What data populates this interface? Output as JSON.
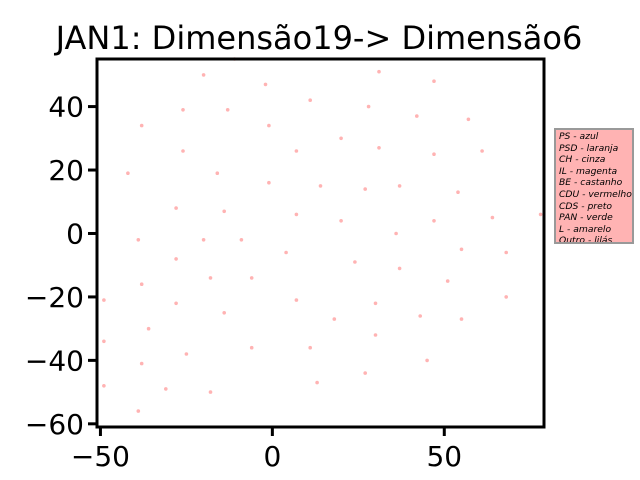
{
  "colors": {
    "point": "#ffb3b3",
    "legend_bg": "#ffb3b3",
    "legend_border": "#999999"
  },
  "chart_data": {
    "type": "scatter",
    "title": "JAN1: Dimensão19-> Dimensão6",
    "xlabel": "",
    "ylabel": "",
    "xlim": [
      -51,
      79
    ],
    "ylim": [
      -61,
      55
    ],
    "xticks": [
      -50,
      0,
      50
    ],
    "xtick_labels": [
      "−50",
      "0",
      "50"
    ],
    "yticks": [
      -60,
      -40,
      -20,
      0,
      20,
      40
    ],
    "ytick_labels": [
      "−60",
      "−40",
      "−20",
      "0",
      "20",
      "40"
    ],
    "grid": false,
    "legend_position": "outside-right",
    "legend": [
      "PS - azul",
      "PSD - laranja",
      "CH - cinza",
      "IL - magenta",
      "BE - castanho",
      "CDU - vermelho",
      "CDS - preto",
      "PAN - verde",
      "L - amarelo",
      "Outro - lilás"
    ],
    "points": [
      {
        "x": -20,
        "y": 50
      },
      {
        "x": -11,
        "y": 55
      },
      {
        "x": 31,
        "y": 51
      },
      {
        "x": -2,
        "y": 47
      },
      {
        "x": 47,
        "y": 48
      },
      {
        "x": 11,
        "y": 42
      },
      {
        "x": -26,
        "y": 39
      },
      {
        "x": -13,
        "y": 39
      },
      {
        "x": 28,
        "y": 40
      },
      {
        "x": 42,
        "y": 37
      },
      {
        "x": 57,
        "y": 36
      },
      {
        "x": -38,
        "y": 34
      },
      {
        "x": -1,
        "y": 34
      },
      {
        "x": 20,
        "y": 30
      },
      {
        "x": 31,
        "y": 27
      },
      {
        "x": -26,
        "y": 26
      },
      {
        "x": 7,
        "y": 26
      },
      {
        "x": 47,
        "y": 25
      },
      {
        "x": 61,
        "y": 26
      },
      {
        "x": -42,
        "y": 19
      },
      {
        "x": -16,
        "y": 19
      },
      {
        "x": -1,
        "y": 16
      },
      {
        "x": 14,
        "y": 15
      },
      {
        "x": 27,
        "y": 14
      },
      {
        "x": 37,
        "y": 15
      },
      {
        "x": 54,
        "y": 13
      },
      {
        "x": -28,
        "y": 8
      },
      {
        "x": -14,
        "y": 7
      },
      {
        "x": 7,
        "y": 6
      },
      {
        "x": 20,
        "y": 4
      },
      {
        "x": 47,
        "y": 4
      },
      {
        "x": 64,
        "y": 5
      },
      {
        "x": 78,
        "y": 6
      },
      {
        "x": -39,
        "y": -2
      },
      {
        "x": -20,
        "y": -2
      },
      {
        "x": -9,
        "y": -2
      },
      {
        "x": 36,
        "y": 0
      },
      {
        "x": 4,
        "y": -6
      },
      {
        "x": 55,
        "y": -5
      },
      {
        "x": 68,
        "y": -6
      },
      {
        "x": -28,
        "y": -8
      },
      {
        "x": 24,
        "y": -9
      },
      {
        "x": -18,
        "y": -14
      },
      {
        "x": -6,
        "y": -14
      },
      {
        "x": 37,
        "y": -11
      },
      {
        "x": 51,
        "y": -15
      },
      {
        "x": -38,
        "y": -16
      },
      {
        "x": -49,
        "y": -21
      },
      {
        "x": -28,
        "y": -22
      },
      {
        "x": 7,
        "y": -21
      },
      {
        "x": 30,
        "y": -22
      },
      {
        "x": 68,
        "y": -20
      },
      {
        "x": -14,
        "y": -25
      },
      {
        "x": 43,
        "y": -26
      },
      {
        "x": 55,
        "y": -27
      },
      {
        "x": 18,
        "y": -27
      },
      {
        "x": -36,
        "y": -30
      },
      {
        "x": 30,
        "y": -32
      },
      {
        "x": -49,
        "y": -34
      },
      {
        "x": -6,
        "y": -36
      },
      {
        "x": 11,
        "y": -36
      },
      {
        "x": -25,
        "y": -38
      },
      {
        "x": 45,
        "y": -40
      },
      {
        "x": -38,
        "y": -41
      },
      {
        "x": 27,
        "y": -44
      },
      {
        "x": 13,
        "y": -47
      },
      {
        "x": -49,
        "y": -48
      },
      {
        "x": -31,
        "y": -49
      },
      {
        "x": -18,
        "y": -50
      },
      {
        "x": -39,
        "y": -56
      }
    ]
  }
}
